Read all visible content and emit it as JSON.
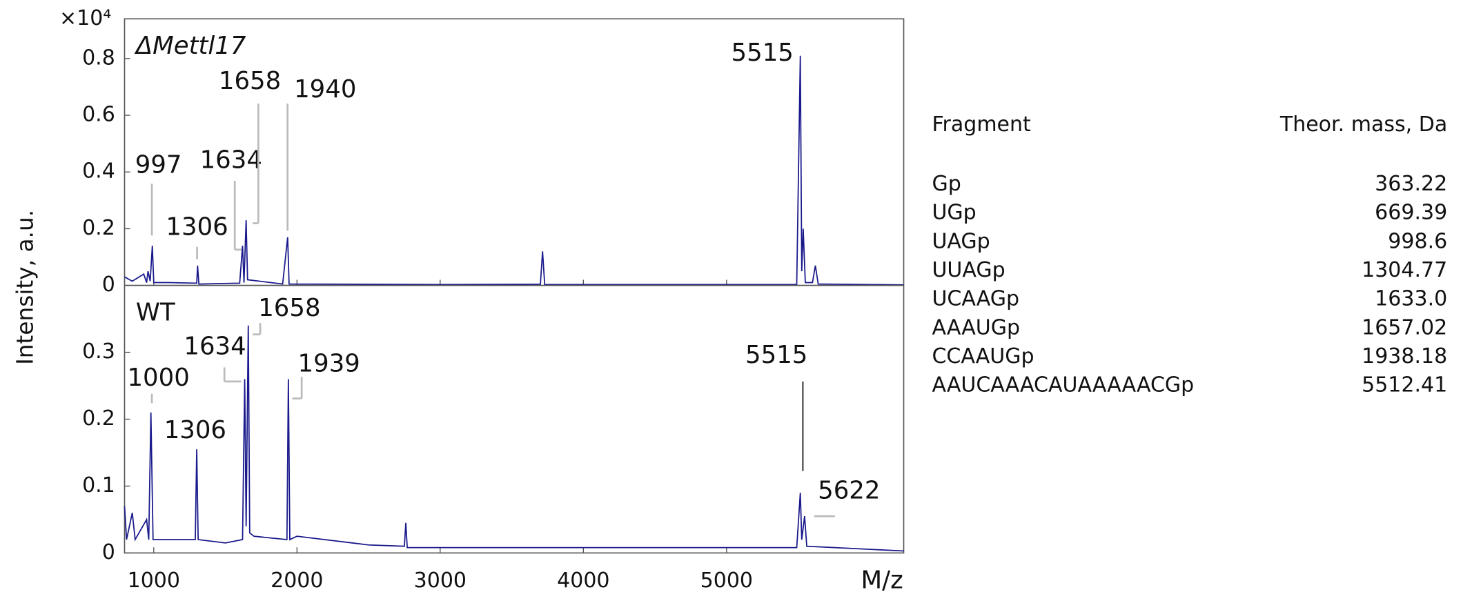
{
  "chart_data": [
    {
      "type": "line",
      "title": "ΔMettl17",
      "title_color": "#c0001a",
      "ylabel": "Intensity, a.u.",
      "y_multiplier": "×10⁴",
      "ylim": [
        0,
        0.94
      ],
      "yticks": [
        0,
        0.2,
        0.4,
        0.6,
        0.8
      ],
      "x": [
        796,
        850,
        930,
        950,
        960,
        975,
        990,
        1000,
        1100,
        1300,
        1306,
        1315,
        1600,
        1620,
        1630,
        1645,
        1655,
        1900,
        1935,
        1945,
        3000,
        3700,
        3715,
        3730,
        5490,
        5515,
        5525,
        5535,
        5550,
        5600,
        5620,
        5640,
        6237
      ],
      "series": [
        {
          "color": "#1a1a8c",
          "values": [
            0.03,
            0.015,
            0.04,
            0.01,
            0.05,
            0.015,
            0.14,
            0.01,
            0.01,
            0.008,
            0.07,
            0.005,
            0.008,
            0.14,
            0.01,
            0.23,
            0.02,
            0.005,
            0.17,
            0.005,
            0.003,
            0.004,
            0.12,
            0.003,
            0.003,
            0.81,
            0.05,
            0.2,
            0.01,
            0.01,
            0.07,
            0.005,
            0.002
          ]
        }
      ],
      "peak_labels": [
        997,
        1306,
        1634,
        1658,
        1940,
        5515
      ]
    },
    {
      "type": "line",
      "title": "WT",
      "title_color": "#c0001a",
      "xlabel": "M/z",
      "xlim": [
        796,
        6237
      ],
      "xticks": [
        1000,
        2000,
        3000,
        4000,
        5000
      ],
      "ylim": [
        0,
        0.4
      ],
      "yticks": [
        0,
        0.1,
        0.2,
        0.3
      ],
      "x": [
        796,
        810,
        850,
        870,
        950,
        965,
        980,
        995,
        1100,
        1290,
        1300,
        1310,
        1500,
        1620,
        1635,
        1645,
        1660,
        1670,
        1700,
        1930,
        1940,
        1950,
        2000,
        2500,
        2750,
        2760,
        2770,
        4000,
        5490,
        5515,
        5525,
        5545,
        5560,
        6237
      ],
      "series": [
        {
          "color": "#1a1a8c",
          "values": [
            0.07,
            0.02,
            0.06,
            0.02,
            0.05,
            0.02,
            0.21,
            0.02,
            0.02,
            0.02,
            0.155,
            0.02,
            0.015,
            0.02,
            0.26,
            0.04,
            0.34,
            0.03,
            0.025,
            0.02,
            0.26,
            0.02,
            0.025,
            0.012,
            0.01,
            0.045,
            0.008,
            0.008,
            0.008,
            0.09,
            0.02,
            0.055,
            0.01,
            0.003
          ]
        }
      ],
      "peak_labels": [
        1000,
        1306,
        1634,
        1658,
        1939,
        5515,
        5622
      ]
    }
  ],
  "table": {
    "columns": [
      "Fragment",
      "Theor. mass, Da"
    ],
    "rows": [
      {
        "fragment": "Gp",
        "mass": "363.22",
        "color": "#c0001a"
      },
      {
        "fragment": "UGp",
        "mass": "669.39",
        "color": "#c0001a"
      },
      {
        "fragment": "UAGp",
        "mass": "998.6",
        "color": "#0b4f6c"
      },
      {
        "fragment": "UUAGp",
        "mass": "1304.77",
        "color": "#0b4f6c"
      },
      {
        "fragment": "UCAAGp",
        "mass": "1633.0",
        "color": "#0b4f6c"
      },
      {
        "fragment": "AAAUGp",
        "mass": "1657.02",
        "color": "#0b4f6c"
      },
      {
        "fragment": "CCAAUGp",
        "mass": "1938.18",
        "color": "#0b4f6c"
      },
      {
        "fragment": "AAUCAAACAUAAAAACGp",
        "mass": "5512.41",
        "color": "#0b4f6c"
      }
    ]
  }
}
